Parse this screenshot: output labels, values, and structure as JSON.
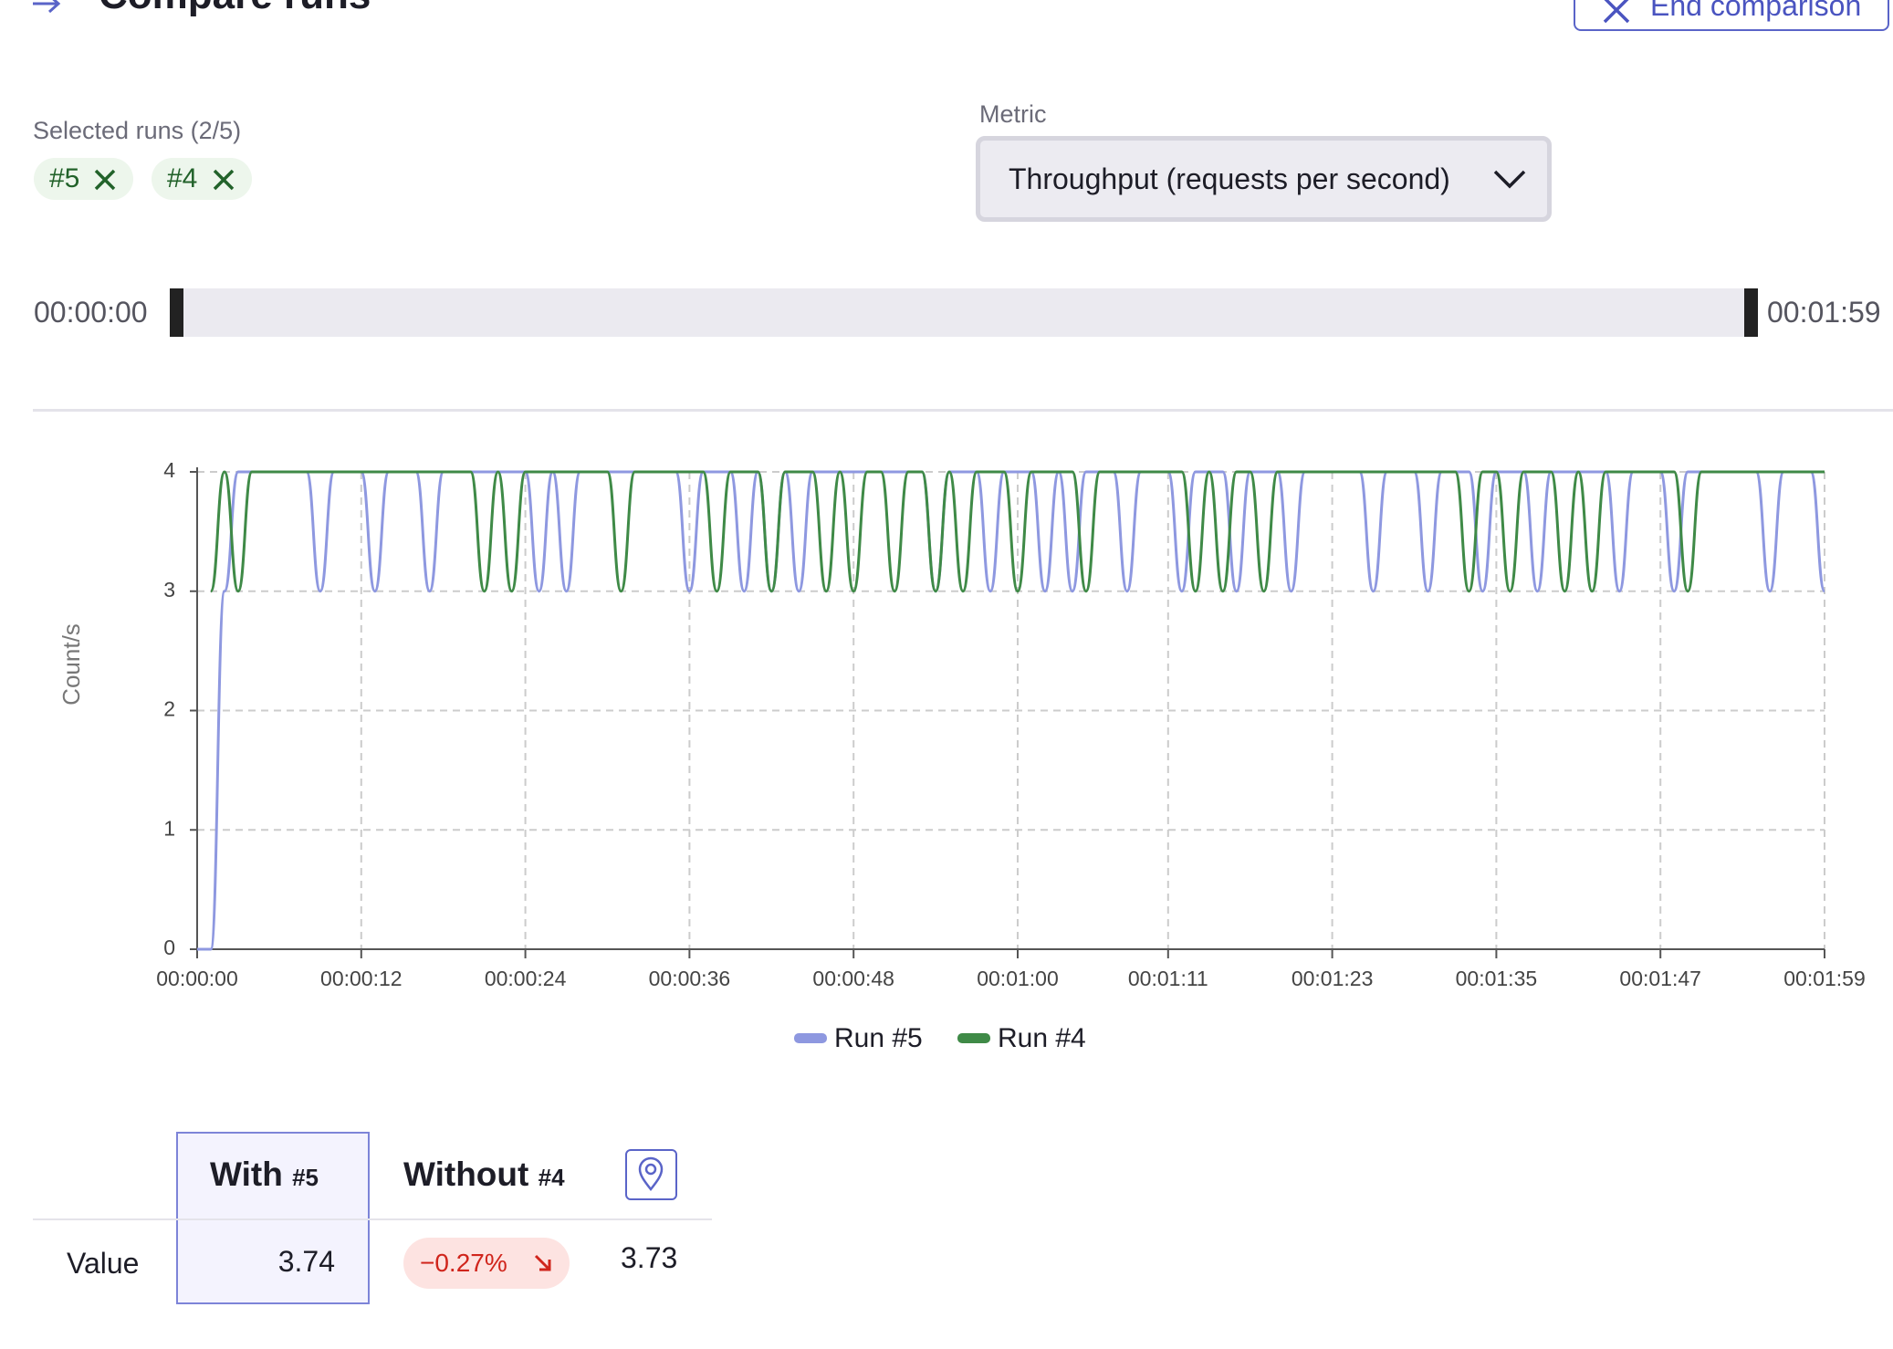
{
  "header": {
    "title": "Compare runs",
    "end_button": "End comparison"
  },
  "selection": {
    "label": "Selected runs (2/5)",
    "chips": [
      "#5",
      "#4"
    ]
  },
  "metric": {
    "label": "Metric",
    "value": "Throughput (requests per second)"
  },
  "range": {
    "start": "00:00:00",
    "end": "00:01:59"
  },
  "chart_data": {
    "type": "line",
    "y_label": "Count/s",
    "x": [
      0,
      1,
      2,
      3,
      4,
      5,
      6,
      7,
      8,
      9,
      10,
      11,
      12,
      13,
      14,
      15,
      16,
      17,
      18,
      19,
      20,
      21,
      22,
      23,
      24,
      25,
      26,
      27,
      28,
      29,
      30,
      31,
      32,
      33,
      34,
      35,
      36,
      37,
      38,
      39,
      40,
      41,
      42,
      43,
      44,
      45,
      46,
      47,
      48,
      49,
      50,
      51,
      52,
      53,
      54,
      55,
      56,
      57,
      58,
      59,
      60,
      61,
      62,
      63,
      64,
      65,
      66,
      67,
      68,
      69,
      70,
      71,
      72,
      73,
      74,
      75,
      76,
      77,
      78,
      79,
      80,
      81,
      82,
      83,
      84,
      85,
      86,
      87,
      88,
      89,
      90,
      91,
      92,
      93,
      94,
      95,
      96,
      97,
      98,
      99,
      100,
      101,
      102,
      103,
      104,
      105,
      106,
      107,
      108,
      109,
      110,
      111,
      112,
      113,
      114,
      115,
      116,
      117,
      118,
      119
    ],
    "xlim": [
      0,
      119
    ],
    "xticks": [
      {
        "value": 0,
        "label": "00:00:00"
      },
      {
        "value": 12,
        "label": "00:00:12"
      },
      {
        "value": 24,
        "label": "00:00:24"
      },
      {
        "value": 36,
        "label": "00:00:36"
      },
      {
        "value": 48,
        "label": "00:00:48"
      },
      {
        "value": 60,
        "label": "00:01:00"
      },
      {
        "value": 71,
        "label": "00:01:11"
      },
      {
        "value": 83,
        "label": "00:01:23"
      },
      {
        "value": 95,
        "label": "00:01:35"
      },
      {
        "value": 107,
        "label": "00:01:47"
      },
      {
        "value": 119,
        "label": "00:01:59"
      }
    ],
    "ylim": [
      0,
      4
    ],
    "yticks": [
      0,
      1,
      2,
      3,
      4
    ],
    "grid": true,
    "series": [
      {
        "name": "Run #5",
        "color": "#8e98e0",
        "values": [
          0,
          0,
          3,
          4,
          4,
          4,
          4,
          4,
          4,
          3,
          4,
          4,
          4,
          3,
          4,
          4,
          4,
          3,
          4,
          4,
          4,
          4,
          4,
          4,
          4,
          3,
          4,
          3,
          4,
          4,
          4,
          4,
          4,
          4,
          4,
          4,
          3,
          4,
          4,
          4,
          3,
          4,
          3,
          4,
          3,
          4,
          4,
          4,
          4,
          4,
          4,
          4,
          4,
          4,
          3,
          4,
          4,
          4,
          3,
          4,
          4,
          4,
          3,
          4,
          3,
          4,
          4,
          4,
          3,
          4,
          4,
          4,
          3,
          4,
          4,
          4,
          3,
          4,
          4,
          4,
          3,
          4,
          4,
          4,
          4,
          4,
          3,
          4,
          4,
          4,
          3,
          4,
          4,
          4,
          3,
          4,
          4,
          4,
          3,
          4,
          4,
          4,
          4,
          4,
          3,
          4,
          4,
          4,
          3,
          4,
          4,
          4,
          4,
          4,
          4,
          3,
          4,
          4,
          4,
          3
        ]
      },
      {
        "name": "Run #4",
        "color": "#3f8a47",
        "values": [
          null,
          3,
          4,
          3,
          4,
          4,
          4,
          4,
          4,
          4,
          4,
          4,
          4,
          4,
          4,
          4,
          4,
          4,
          4,
          4,
          4,
          3,
          4,
          3,
          4,
          4,
          4,
          4,
          4,
          4,
          4,
          3,
          4,
          4,
          4,
          4,
          4,
          4,
          3,
          4,
          4,
          4,
          3,
          4,
          4,
          4,
          3,
          4,
          3,
          4,
          4,
          3,
          4,
          4,
          3,
          4,
          3,
          4,
          4,
          4,
          3,
          4,
          4,
          4,
          4,
          3,
          4,
          4,
          4,
          4,
          4,
          4,
          4,
          3,
          4,
          3,
          4,
          4,
          3,
          4,
          4,
          4,
          4,
          4,
          4,
          4,
          4,
          4,
          4,
          4,
          4,
          4,
          4,
          3,
          4,
          4,
          3,
          4,
          4,
          4,
          3,
          4,
          3,
          4,
          4,
          4,
          4,
          4,
          4,
          3,
          4,
          4,
          4,
          4,
          4,
          4,
          4,
          4,
          4,
          4
        ]
      }
    ]
  },
  "comparison_table": {
    "columns": [
      {
        "label": "With",
        "run": "#5"
      },
      {
        "label": "Without",
        "run": "#4"
      }
    ],
    "row": {
      "label": "Value",
      "with_value": "3.74",
      "change": "−0.27%",
      "without_value": "3.73"
    }
  }
}
